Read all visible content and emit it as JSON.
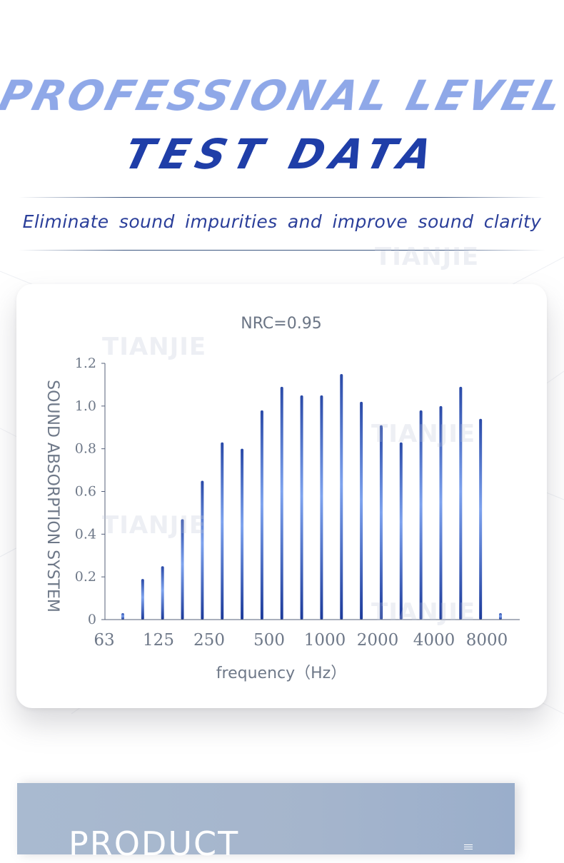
{
  "header": {
    "headline_line1": "PROFESSIONAL LEVEL",
    "headline_line2": "TEST DATA",
    "subtitle": "Eliminate sound impurities and improve sound clarity"
  },
  "watermark_text": "TIANJIE",
  "colors": {
    "headline_light": "#8fa8e8",
    "headline_dark": "#1f3ea8",
    "subtitle": "#2b3f9a",
    "bar_dark": "#1c3a9a",
    "bar_light": "#6f96e8",
    "axis_text": "#6e7888"
  },
  "chart_data": {
    "type": "bar",
    "title": "NRC=0.95",
    "xlabel": "frequency（Hz）",
    "ylabel": "SOUND ABSORPTION SYSTEM",
    "ylim": [
      0,
      1.2
    ],
    "yticks": [
      "0",
      "0.2",
      "0.4",
      "0.6",
      "0.8",
      "1.0",
      "1.2"
    ],
    "xticks": [
      "63",
      "125",
      "250",
      "500",
      "1000",
      "2000",
      "4000",
      "8000"
    ],
    "values": [
      0.03,
      0.19,
      0.25,
      0.47,
      0.65,
      0.83,
      0.8,
      0.98,
      1.09,
      1.05,
      1.05,
      1.15,
      1.02,
      0.91,
      0.83,
      0.98,
      1.0,
      1.09,
      0.94,
      0.03
    ],
    "grid": false,
    "legend": "none"
  },
  "product_panel": {
    "title": "PRODUCT",
    "icon": "menu-icon"
  }
}
